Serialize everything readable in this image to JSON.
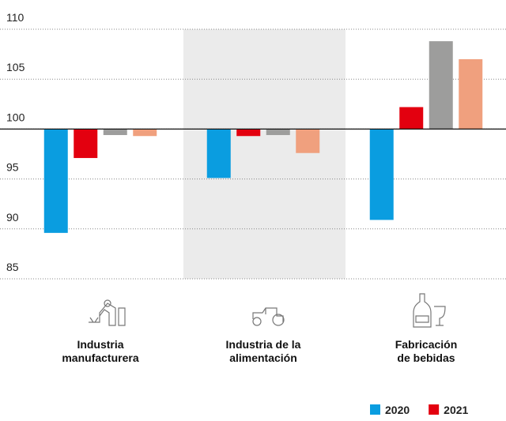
{
  "chart_data": {
    "type": "bar",
    "categories": [
      "Industria\nmanufacturera",
      "Industria de la\nalimentación",
      "Fabricación\nde bebidas"
    ],
    "series": [
      {
        "name": "2020",
        "color": "#0a9de0",
        "values": [
          89.6,
          95.1,
          90.9
        ]
      },
      {
        "name": "2021",
        "color": "#e3000f",
        "values": [
          97.1,
          99.3,
          102.2
        ]
      },
      {
        "color": "#9d9d9c",
        "values": [
          99.4,
          99.4,
          108.8
        ]
      },
      {
        "color": "#f0a07e",
        "values": [
          99.3,
          97.6,
          107.0
        ]
      }
    ],
    "baseline": 100,
    "ylim": [
      85,
      110
    ],
    "yticks": [
      85,
      90,
      95,
      100,
      105,
      110
    ],
    "grid": true,
    "legend": "bottom-right"
  }
}
